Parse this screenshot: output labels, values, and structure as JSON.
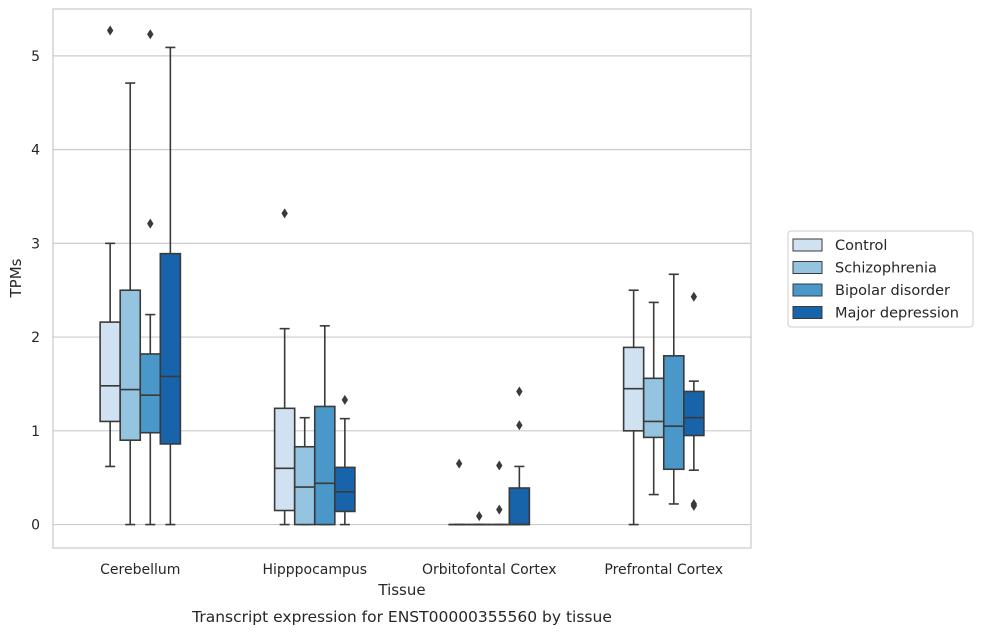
{
  "caption": "Transcript expression for ENST00000355560 by tissue",
  "chart_data": {
    "type": "boxplot",
    "xlabel": "Tissue",
    "ylabel": "TPMs",
    "ylim": [
      -0.25,
      5.5
    ],
    "yticks": [
      0,
      1,
      2,
      3,
      4,
      5
    ],
    "grid": "horizontal",
    "legend_position": "right",
    "categories": [
      "Cerebellum",
      "Hipppocampus",
      "Orbitofontal Cortex",
      "Prefrontal Cortex"
    ],
    "series": [
      {
        "name": "Control",
        "color": "#d0e1f2",
        "boxes": [
          {
            "whislo": 0.62,
            "q1": 1.1,
            "med": 1.48,
            "q3": 2.16,
            "whishi": 3.0,
            "fliers": [
              5.27
            ]
          },
          {
            "whislo": 0.0,
            "q1": 0.15,
            "med": 0.6,
            "q3": 1.24,
            "whishi": 2.09,
            "fliers": [
              3.32
            ]
          },
          {
            "whislo": 0.0,
            "q1": 0.0,
            "med": 0.0,
            "q3": 0.0,
            "whishi": 0.0,
            "fliers": [
              0.65
            ]
          },
          {
            "whislo": 0.0,
            "q1": 1.0,
            "med": 1.45,
            "q3": 1.89,
            "whishi": 2.5,
            "fliers": []
          }
        ]
      },
      {
        "name": "Schizophrenia",
        "color": "#94c4df",
        "boxes": [
          {
            "whislo": 0.0,
            "q1": 0.9,
            "med": 1.44,
            "q3": 2.5,
            "whishi": 4.71,
            "fliers": []
          },
          {
            "whislo": 0.0,
            "q1": 0.0,
            "med": 0.4,
            "q3": 0.83,
            "whishi": 1.14,
            "fliers": []
          },
          {
            "whislo": 0.0,
            "q1": 0.0,
            "med": 0.0,
            "q3": 0.0,
            "whishi": 0.0,
            "fliers": [
              0.09
            ]
          },
          {
            "whislo": 0.32,
            "q1": 0.93,
            "med": 1.1,
            "q3": 1.56,
            "whishi": 2.37,
            "fliers": []
          }
        ]
      },
      {
        "name": "Bipolar disorder",
        "color": "#4a98c9",
        "boxes": [
          {
            "whislo": 0.0,
            "q1": 0.98,
            "med": 1.38,
            "q3": 1.82,
            "whishi": 2.24,
            "fliers": [
              3.21,
              5.23
            ]
          },
          {
            "whislo": 0.0,
            "q1": 0.0,
            "med": 0.44,
            "q3": 1.26,
            "whishi": 2.12,
            "fliers": []
          },
          {
            "whislo": 0.0,
            "q1": 0.0,
            "med": 0.0,
            "q3": 0.0,
            "whishi": 0.0,
            "fliers": [
              0.16,
              0.63
            ]
          },
          {
            "whislo": 0.22,
            "q1": 0.59,
            "med": 1.05,
            "q3": 1.8,
            "whishi": 2.67,
            "fliers": []
          }
        ]
      },
      {
        "name": "Major depression",
        "color": "#1764ab",
        "boxes": [
          {
            "whislo": 0.0,
            "q1": 0.86,
            "med": 1.58,
            "q3": 2.89,
            "whishi": 5.09,
            "fliers": []
          },
          {
            "whislo": 0.0,
            "q1": 0.14,
            "med": 0.35,
            "q3": 0.61,
            "whishi": 1.13,
            "fliers": [
              1.33
            ]
          },
          {
            "whislo": 0.0,
            "q1": 0.0,
            "med": 0.0,
            "q3": 0.39,
            "whishi": 0.62,
            "fliers": [
              1.06,
              1.42
            ]
          },
          {
            "whislo": 0.58,
            "q1": 0.95,
            "med": 1.14,
            "q3": 1.42,
            "whishi": 1.53,
            "fliers": [
              0.2,
              0.22,
              2.43
            ]
          }
        ]
      }
    ]
  }
}
